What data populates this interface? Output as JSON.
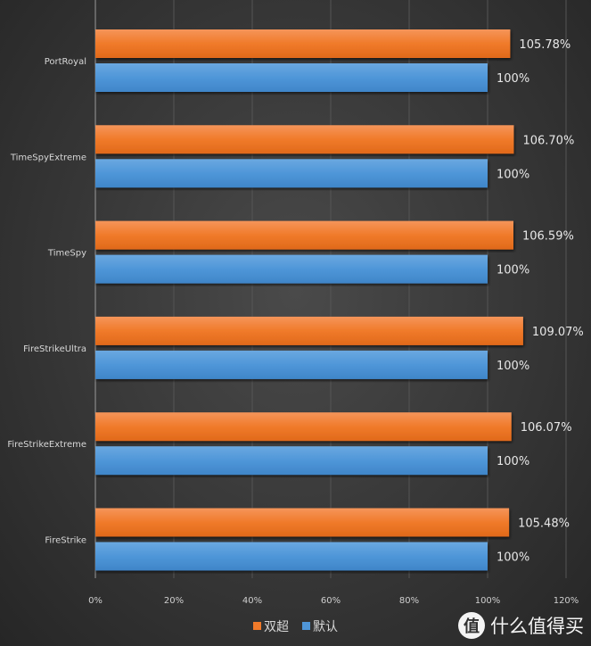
{
  "chart_data": {
    "type": "bar",
    "orientation": "horizontal",
    "categories": [
      "PortRoyal",
      "TimeSpyExtreme",
      "TimeSpy",
      "FireStrikeUltra",
      "FireStrikeExtreme",
      "FireStrike"
    ],
    "series": [
      {
        "name": "双超",
        "color": "#f07a2a",
        "values": [
          105.78,
          106.7,
          106.59,
          109.07,
          106.07,
          105.48
        ],
        "labels": [
          "105.78%",
          "106.70%",
          "106.59%",
          "109.07%",
          "106.07%",
          "105.48%"
        ]
      },
      {
        "name": "默认",
        "color": "#4f96d8",
        "values": [
          100,
          100,
          100,
          100,
          100,
          100
        ],
        "labels": [
          "100%",
          "100%",
          "100%",
          "100%",
          "100%",
          "100%"
        ]
      }
    ],
    "xlim": [
      0,
      120
    ],
    "xticks": [
      0,
      20,
      40,
      60,
      80,
      100,
      120
    ],
    "xtick_labels": [
      "0%",
      "20%",
      "40%",
      "60%",
      "80%",
      "100%",
      "120%"
    ],
    "grid": true,
    "legend_position": "bottom"
  },
  "watermark": {
    "logo_char": "值",
    "text": "什么值得买"
  }
}
